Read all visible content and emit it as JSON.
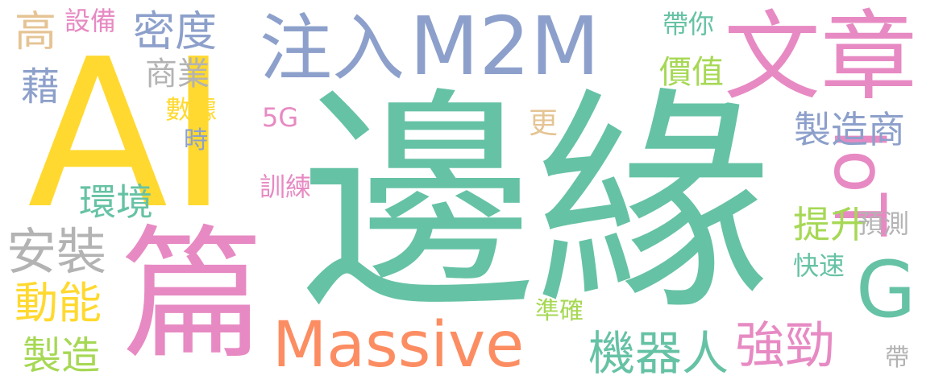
{
  "palette": {
    "teal": "#66c2a5",
    "orange": "#fc8d62",
    "blue": "#8da0cb",
    "pink": "#e78ac3",
    "green": "#a6d854",
    "yellow": "#ffd92f",
    "tan": "#e5c494",
    "gray": "#b3b3b3"
  },
  "words": [
    {
      "id": "bianyuan",
      "text": "邊緣",
      "color": "teal"
    },
    {
      "id": "ai",
      "text": "AI",
      "color": "yellow"
    },
    {
      "id": "pian",
      "text": "篇",
      "color": "pink"
    },
    {
      "id": "massive",
      "text": "Massive",
      "color": "orange"
    },
    {
      "id": "m2m",
      "text": "M2M",
      "color": "blue"
    },
    {
      "id": "wenzhang",
      "text": "文章",
      "color": "pink"
    },
    {
      "id": "zhuru",
      "text": "注入",
      "color": "blue"
    },
    {
      "id": "iot",
      "text": "IoT",
      "color": "pink"
    },
    {
      "id": "g",
      "text": "G",
      "color": "teal"
    },
    {
      "id": "midu",
      "text": "密度",
      "color": "blue"
    },
    {
      "id": "zhizaoshang",
      "text": "製造商",
      "color": "blue"
    },
    {
      "id": "jiqiren",
      "text": "機器人",
      "color": "teal"
    },
    {
      "id": "qiangjin",
      "text": "強勁",
      "color": "pink"
    },
    {
      "id": "anzhuang",
      "text": "安裝",
      "color": "gray"
    },
    {
      "id": "dongneng",
      "text": "動能",
      "color": "yellow"
    },
    {
      "id": "gao",
      "text": "高",
      "color": "tan"
    },
    {
      "id": "shebei",
      "text": "設備",
      "color": "pink"
    },
    {
      "id": "shangye",
      "text": "商業",
      "color": "gray"
    },
    {
      "id": "ji",
      "text": "藉",
      "color": "blue"
    },
    {
      "id": "shuju",
      "text": "數據",
      "color": "yellow"
    },
    {
      "id": "shi",
      "text": "時",
      "color": "blue"
    },
    {
      "id": "huanjing",
      "text": "環境",
      "color": "teal"
    },
    {
      "id": "zhizao",
      "text": "製造",
      "color": "green"
    },
    {
      "id": "5g",
      "text": "5G",
      "color": "pink"
    },
    {
      "id": "xunlian",
      "text": "訓練",
      "color": "pink"
    },
    {
      "id": "geng",
      "text": "更",
      "color": "tan"
    },
    {
      "id": "jiazhi",
      "text": "價值",
      "color": "green"
    },
    {
      "id": "daini",
      "text": "帶你",
      "color": "teal"
    },
    {
      "id": "tisheng",
      "text": "提升",
      "color": "green"
    },
    {
      "id": "yuce",
      "text": "預測",
      "color": "gray"
    },
    {
      "id": "kuaisu",
      "text": "快速",
      "color": "teal"
    },
    {
      "id": "zhunque",
      "text": "準確",
      "color": "green"
    },
    {
      "id": "dai",
      "text": "帶",
      "color": "gray"
    }
  ]
}
